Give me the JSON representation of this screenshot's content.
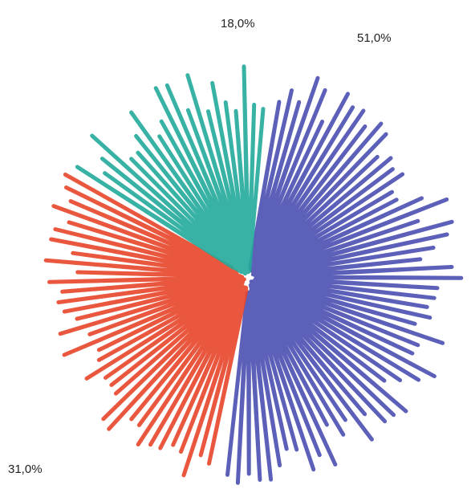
{
  "chart_data": {
    "type": "pie",
    "values": [
      51,
      31,
      18
    ],
    "value_labels": [
      "51,0%",
      "31,0%",
      "18,0%"
    ],
    "colors": [
      "#4a4fb0",
      "#e8452a",
      "#22aa9a"
    ],
    "start_angle": 5
  }
}
